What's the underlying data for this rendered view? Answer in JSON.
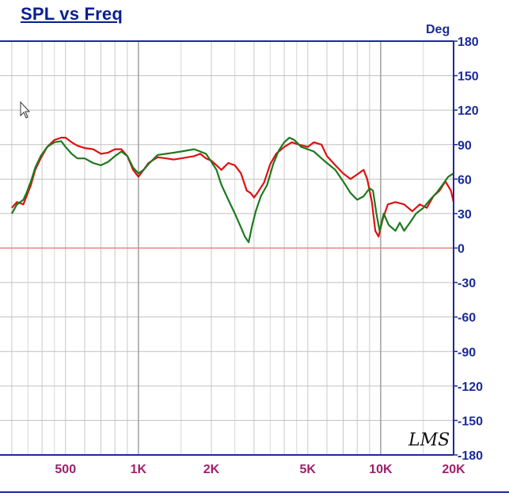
{
  "chart_data": {
    "type": "line",
    "title": "SPL vs Freq",
    "y_unit": "Deg",
    "xscale": "log",
    "xlim": [
      300,
      20000
    ],
    "ylim": [
      -180,
      180
    ],
    "yticks": [
      180,
      150,
      120,
      90,
      60,
      30,
      0,
      -30,
      -60,
      -90,
      -120,
      -150,
      -180
    ],
    "xtick_labels": [
      {
        "value": 500,
        "label": "500"
      },
      {
        "value": 1000,
        "label": "1K"
      },
      {
        "value": 2000,
        "label": "2K"
      },
      {
        "value": 5000,
        "label": "5K"
      },
      {
        "value": 10000,
        "label": "10K"
      },
      {
        "value": 20000,
        "label": "20K"
      }
    ],
    "grid": true,
    "reference_line": 0,
    "logo_text": "LMS",
    "series": [
      {
        "color": "#dd1111",
        "points": [
          [
            300,
            35
          ],
          [
            315,
            40
          ],
          [
            335,
            38
          ],
          [
            345,
            45
          ],
          [
            360,
            55
          ],
          [
            375,
            68
          ],
          [
            395,
            78
          ],
          [
            420,
            88
          ],
          [
            450,
            94
          ],
          [
            480,
            96
          ],
          [
            500,
            96
          ],
          [
            530,
            92
          ],
          [
            560,
            89
          ],
          [
            600,
            87
          ],
          [
            650,
            86
          ],
          [
            700,
            82
          ],
          [
            750,
            83
          ],
          [
            800,
            86
          ],
          [
            850,
            86
          ],
          [
            900,
            80
          ],
          [
            950,
            68
          ],
          [
            1000,
            62
          ],
          [
            1050,
            68
          ],
          [
            1100,
            74
          ],
          [
            1200,
            79
          ],
          [
            1300,
            78
          ],
          [
            1400,
            77
          ],
          [
            1500,
            78
          ],
          [
            1600,
            79
          ],
          [
            1700,
            80
          ],
          [
            1800,
            82
          ],
          [
            1900,
            78
          ],
          [
            2000,
            76
          ],
          [
            2100,
            72
          ],
          [
            2200,
            68
          ],
          [
            2350,
            74
          ],
          [
            2500,
            72
          ],
          [
            2650,
            65
          ],
          [
            2800,
            50
          ],
          [
            2900,
            48
          ],
          [
            3000,
            44
          ],
          [
            3100,
            48
          ],
          [
            3300,
            57
          ],
          [
            3500,
            73
          ],
          [
            3700,
            82
          ],
          [
            4000,
            88
          ],
          [
            4300,
            92
          ],
          [
            4600,
            90
          ],
          [
            5000,
            88
          ],
          [
            5300,
            92
          ],
          [
            5700,
            90
          ],
          [
            6000,
            80
          ],
          [
            6500,
            72
          ],
          [
            7000,
            65
          ],
          [
            7500,
            60
          ],
          [
            8000,
            64
          ],
          [
            8500,
            68
          ],
          [
            8800,
            60
          ],
          [
            9200,
            40
          ],
          [
            9500,
            15
          ],
          [
            9800,
            10
          ],
          [
            10200,
            25
          ],
          [
            10700,
            38
          ],
          [
            11500,
            40
          ],
          [
            12500,
            38
          ],
          [
            13500,
            32
          ],
          [
            14500,
            38
          ],
          [
            15500,
            35
          ],
          [
            16500,
            45
          ],
          [
            17500,
            50
          ],
          [
            18500,
            58
          ],
          [
            19500,
            50
          ],
          [
            20000,
            40
          ]
        ]
      },
      {
        "color": "#1d7a1d",
        "points": [
          [
            300,
            30
          ],
          [
            315,
            38
          ],
          [
            335,
            42
          ],
          [
            345,
            48
          ],
          [
            360,
            58
          ],
          [
            375,
            70
          ],
          [
            395,
            80
          ],
          [
            420,
            88
          ],
          [
            450,
            92
          ],
          [
            480,
            93
          ],
          [
            500,
            88
          ],
          [
            530,
            82
          ],
          [
            560,
            78
          ],
          [
            600,
            78
          ],
          [
            650,
            74
          ],
          [
            700,
            72
          ],
          [
            750,
            75
          ],
          [
            800,
            80
          ],
          [
            850,
            84
          ],
          [
            900,
            80
          ],
          [
            950,
            70
          ],
          [
            1000,
            65
          ],
          [
            1050,
            68
          ],
          [
            1100,
            73
          ],
          [
            1200,
            81
          ],
          [
            1300,
            82
          ],
          [
            1400,
            83
          ],
          [
            1500,
            84
          ],
          [
            1600,
            85
          ],
          [
            1700,
            86
          ],
          [
            1800,
            84
          ],
          [
            1900,
            82
          ],
          [
            2000,
            75
          ],
          [
            2100,
            68
          ],
          [
            2200,
            55
          ],
          [
            2350,
            42
          ],
          [
            2500,
            30
          ],
          [
            2650,
            18
          ],
          [
            2750,
            10
          ],
          [
            2850,
            5
          ],
          [
            2950,
            20
          ],
          [
            3050,
            32
          ],
          [
            3200,
            45
          ],
          [
            3400,
            55
          ],
          [
            3600,
            73
          ],
          [
            3800,
            85
          ],
          [
            4000,
            92
          ],
          [
            4200,
            96
          ],
          [
            4400,
            94
          ],
          [
            4700,
            88
          ],
          [
            5000,
            86
          ],
          [
            5300,
            84
          ],
          [
            5700,
            78
          ],
          [
            6000,
            74
          ],
          [
            6500,
            68
          ],
          [
            7000,
            58
          ],
          [
            7500,
            48
          ],
          [
            8000,
            42
          ],
          [
            8500,
            45
          ],
          [
            9000,
            52
          ],
          [
            9300,
            50
          ],
          [
            9600,
            30
          ],
          [
            9900,
            15
          ],
          [
            10300,
            30
          ],
          [
            10800,
            20
          ],
          [
            11500,
            15
          ],
          [
            12000,
            22
          ],
          [
            12500,
            15
          ],
          [
            13200,
            22
          ],
          [
            14000,
            30
          ],
          [
            15000,
            35
          ],
          [
            16000,
            42
          ],
          [
            17000,
            48
          ],
          [
            18000,
            55
          ],
          [
            19000,
            62
          ],
          [
            20000,
            65
          ]
        ]
      }
    ]
  }
}
